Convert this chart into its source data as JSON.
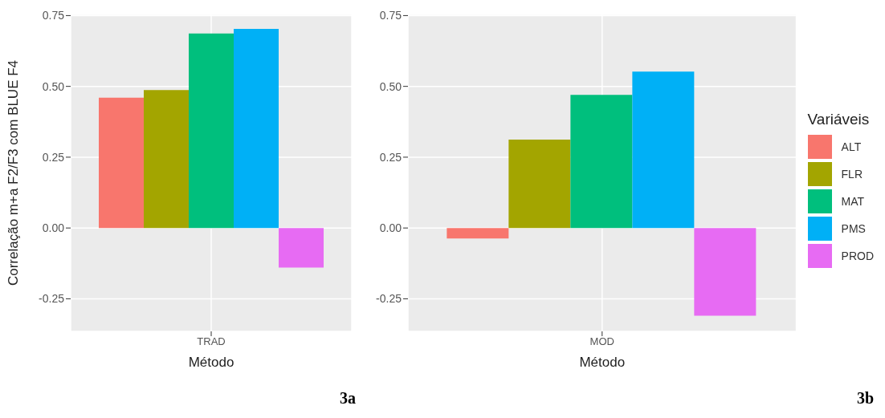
{
  "chart_data": [
    {
      "type": "bar",
      "ylabel": "Correlação m+a F2/F3 com BLUE F4",
      "xlabel": "Método",
      "categories": [
        "TRAD"
      ],
      "series": [
        {
          "color": "#f8766d",
          "values": [
            0.46
          ]
        },
        {
          "color": "#a3a500",
          "values": [
            0.487
          ]
        },
        {
          "color": "#00bf7d",
          "values": [
            0.687
          ]
        },
        {
          "color": "#00b0f6",
          "values": [
            0.703
          ]
        },
        {
          "color": "#e76bf3",
          "values": [
            -0.14
          ]
        }
      ],
      "ylim": [
        -0.365,
        0.754
      ],
      "yticks": [
        {
          "value": -0.25,
          "label": "-0.25"
        },
        {
          "value": 0,
          "label": "0.00"
        },
        {
          "value": 0.25,
          "label": "0.25"
        },
        {
          "value": 0.5,
          "label": "0.50"
        },
        {
          "value": 0.75,
          "label": "0.75"
        }
      ],
      "grid": true,
      "legend": false,
      "annotations": [
        "3a"
      ]
    },
    {
      "type": "bar",
      "xlabel": "Método",
      "categories": [
        "MOD"
      ],
      "legend_title": "Variáveis",
      "series": [
        {
          "name": "ALT",
          "color": "#f8766d",
          "values": [
            -0.037
          ]
        },
        {
          "name": "FLR",
          "color": "#a3a500",
          "values": [
            0.312
          ]
        },
        {
          "name": "MAT",
          "color": "#00bf7d",
          "values": [
            0.47
          ]
        },
        {
          "name": "PMS",
          "color": "#00b0f6",
          "values": [
            0.552
          ]
        },
        {
          "name": "PROD",
          "color": "#e76bf3",
          "values": [
            -0.31
          ]
        }
      ],
      "ylim": [
        -0.365,
        0.754
      ],
      "yticks": [
        {
          "value": -0.25,
          "label": "-0.25"
        },
        {
          "value": 0,
          "label": "0.00"
        },
        {
          "value": 0.25,
          "label": "0.25"
        },
        {
          "value": 0.5,
          "label": "0.50"
        },
        {
          "value": 0.75,
          "label": "0.75"
        }
      ],
      "grid": true,
      "legend": "right",
      "annotations": [
        "3b"
      ]
    }
  ]
}
